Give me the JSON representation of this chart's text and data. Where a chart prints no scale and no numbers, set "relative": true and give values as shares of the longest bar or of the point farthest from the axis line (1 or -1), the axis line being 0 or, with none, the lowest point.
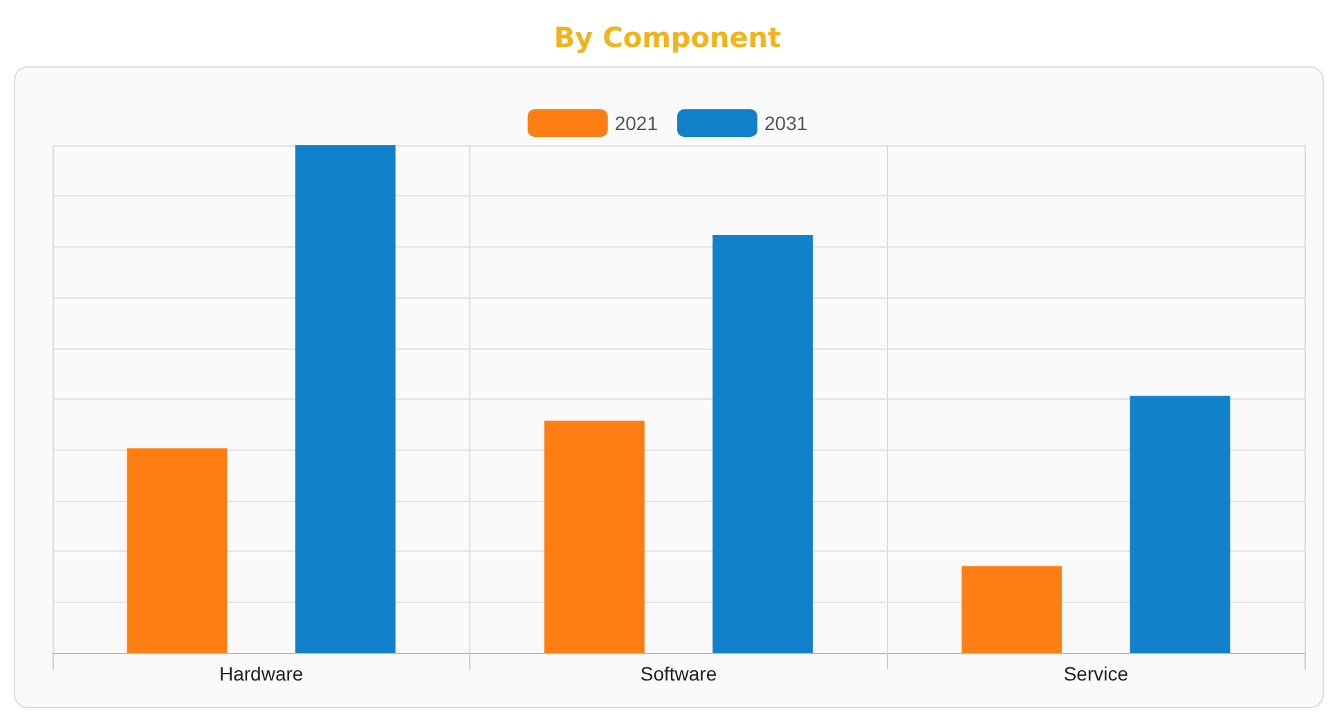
{
  "chart_data": {
    "type": "bar",
    "title": "By Component",
    "relative": true,
    "categories": [
      "Hardware",
      "Software",
      "Service"
    ],
    "series": [
      {
        "name": "2021",
        "color": "#fd7f14",
        "values": [
          0.403,
          0.457,
          0.171
        ]
      },
      {
        "name": "2031",
        "color": "#1181cc",
        "values": [
          1,
          0.823,
          0.506
        ]
      }
    ],
    "grid": true,
    "legend": "top"
  }
}
